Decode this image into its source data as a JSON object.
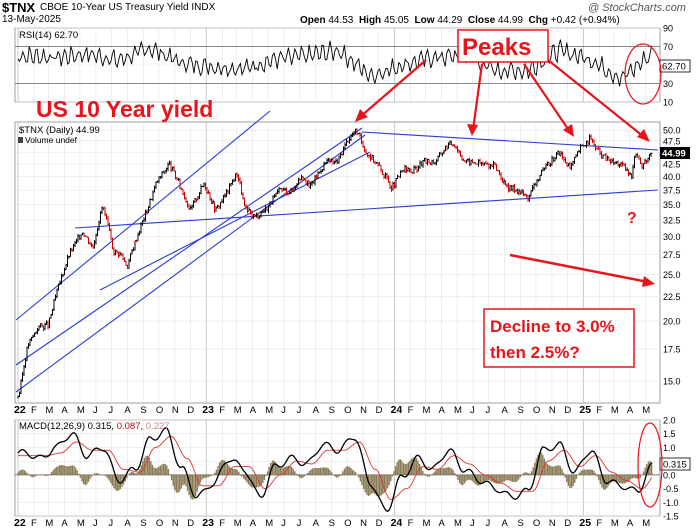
{
  "header": {
    "symbol": "$TNX",
    "description": "CBOE 10-Year US Treasury Yield INDX",
    "date": "13-May-2025",
    "watermark": "@ StockCharts.com",
    "ohlc": {
      "open_label": "Open",
      "open": "44.53",
      "high_label": "High",
      "high": "45.05",
      "low_label": "Low",
      "low": "44.29",
      "close_label": "Close",
      "close": "44.99",
      "chg_label": "Chg",
      "chg": "+0.42 (+0.94%)"
    }
  },
  "annotations": {
    "title": "US 10 Year yield",
    "peaks": "Peaks",
    "question": "?",
    "decline": "Decline to 3.0%\nthen 2.5%?",
    "red_color": "#e8141c"
  },
  "colors": {
    "channel": "#2a3bd6",
    "price": "#000000",
    "down": "#cc0000",
    "grid": "#e3e3e3",
    "hist": "#8a7a55"
  },
  "x_axis": {
    "months": [
      "22",
      "F",
      "M",
      "A",
      "M",
      "J",
      "J",
      "A",
      "S",
      "O",
      "N",
      "D",
      "23",
      "F",
      "M",
      "A",
      "M",
      "J",
      "J",
      "A",
      "S",
      "O",
      "N",
      "D",
      "24",
      "F",
      "M",
      "A",
      "M",
      "J",
      "J",
      "A",
      "S",
      "O",
      "N",
      "D",
      "25",
      "F",
      "M",
      "A",
      "M"
    ],
    "year_marks": [
      "22",
      "23",
      "24",
      "25"
    ]
  },
  "chart_data": [
    {
      "type": "line",
      "name": "rsi_panel",
      "label": "RSI(14) 62.70",
      "current": "62.70",
      "ylim": [
        10,
        90
      ],
      "yticks": [
        "90",
        "70",
        "50",
        "30",
        "10"
      ],
      "lines": [
        30,
        70
      ],
      "series": [
        {
          "x": [
            "2022-01",
            "2022-03",
            "2022-05",
            "2022-07",
            "2022-09",
            "2022-11",
            "2023-01",
            "2023-03",
            "2023-05",
            "2023-07",
            "2023-09",
            "2023-11",
            "2024-01",
            "2024-03",
            "2024-05",
            "2024-07",
            "2024-09",
            "2024-11",
            "2025-01",
            "2025-03",
            "2025-05"
          ],
          "y": [
            60,
            58,
            62,
            55,
            68,
            52,
            48,
            46,
            56,
            60,
            66,
            38,
            50,
            58,
            60,
            44,
            44,
            66,
            56,
            35,
            62.7
          ]
        }
      ]
    },
    {
      "type": "line",
      "name": "price_panel",
      "label": "$TNX (Daily) 44.99",
      "volume_label": "Volume undef",
      "current": "44.99",
      "yscale": "log",
      "ylim": [
        13.5,
        52
      ],
      "yticks": [
        "50.0",
        "47.5",
        "45.0",
        "42.5",
        "40.0",
        "37.5",
        "35.0",
        "32.5",
        "30.0",
        "27.5",
        "25.0",
        "22.5",
        "20.0",
        "17.5",
        "15.0"
      ],
      "series": [
        {
          "x": [
            "2022-01-03",
            "2022-01-20",
            "2022-02-10",
            "2022-03-01",
            "2022-03-20",
            "2022-04-10",
            "2022-05-06",
            "2022-05-26",
            "2022-06-14",
            "2022-07-05",
            "2022-07-20",
            "2022-08-01",
            "2022-08-22",
            "2022-09-10",
            "2022-09-27",
            "2022-10-21",
            "2022-11-10",
            "2022-12-01",
            "2022-12-28",
            "2023-01-19",
            "2023-02-08",
            "2023-03-02",
            "2023-03-17",
            "2023-04-06",
            "2023-04-28",
            "2023-05-25",
            "2023-06-15",
            "2023-07-06",
            "2023-07-20",
            "2023-08-21",
            "2023-09-12",
            "2023-10-03",
            "2023-10-19",
            "2023-11-07",
            "2023-11-28",
            "2023-12-27",
            "2024-01-19",
            "2024-02-05",
            "2024-02-27",
            "2024-03-20",
            "2024-04-12",
            "2024-04-25",
            "2024-05-16",
            "2024-06-05",
            "2024-06-25",
            "2024-07-15",
            "2024-08-05",
            "2024-08-22",
            "2024-09-16",
            "2024-10-07",
            "2024-10-28",
            "2024-11-15",
            "2024-12-06",
            "2024-12-27",
            "2025-01-14",
            "2025-02-03",
            "2025-02-24",
            "2025-03-14",
            "2025-04-04",
            "2025-04-11",
            "2025-04-25",
            "2025-05-13"
          ],
          "y": [
            14.0,
            17.8,
            19.5,
            19.6,
            23.5,
            27.5,
            30.8,
            28.5,
            34.8,
            28.0,
            27.5,
            26.0,
            30.5,
            34.5,
            39.0,
            42.5,
            38.5,
            34.0,
            38.8,
            34.0,
            36.8,
            40.8,
            34.2,
            33.0,
            34.4,
            37.6,
            37.2,
            40.5,
            37.9,
            43.0,
            42.9,
            47.9,
            49.9,
            45.0,
            42.6,
            37.9,
            41.5,
            41.0,
            43.0,
            43.0,
            46.5,
            47.0,
            43.0,
            42.8,
            42.5,
            42.0,
            37.8,
            37.8,
            36.2,
            40.0,
            42.8,
            45.0,
            41.5,
            46.0,
            48.0,
            44.5,
            43.0,
            42.5,
            40.0,
            45.2,
            42.0,
            44.99
          ]
        }
      ]
    },
    {
      "type": "line",
      "name": "macd_panel",
      "label": "MACD(12,26,9)",
      "values": [
        "0.315",
        "0.087",
        "0.227"
      ],
      "current": "0.315",
      "ylim": [
        -1.5,
        2.0
      ],
      "yticks": [
        "2.0",
        "1.5",
        "1.0",
        "0.5",
        "0.0",
        "-0.5",
        "-1.0",
        "-1.5"
      ],
      "series": [
        {
          "name": "0.315",
          "x": [
            "2022-01",
            "2022-02",
            "2022-03",
            "2022-04",
            "2022-05",
            "2022-06",
            "2022-07",
            "2022-08",
            "2022-09",
            "2022-10",
            "2022-11",
            "2022-12",
            "2023-01",
            "2023-02",
            "2023-03",
            "2023-04",
            "2023-05",
            "2023-06",
            "2023-07",
            "2023-08",
            "2023-09",
            "2023-10",
            "2023-11",
            "2023-12",
            "2024-01",
            "2024-02",
            "2024-03",
            "2024-04",
            "2024-05",
            "2024-06",
            "2024-07",
            "2024-08",
            "2024-09",
            "2024-10",
            "2024-11",
            "2024-12",
            "2025-01",
            "2025-02",
            "2025-03",
            "2025-04",
            "2025-05"
          ],
          "y": [
            0.8,
            0.6,
            1.0,
            1.5,
            0.7,
            1.0,
            -0.2,
            0.2,
            1.3,
            1.6,
            0.2,
            -0.8,
            -0.3,
            0.6,
            0.2,
            -0.8,
            0.3,
            0.6,
            0.4,
            1.1,
            0.9,
            1.4,
            -0.3,
            -1.3,
            -0.1,
            0.6,
            0.2,
            0.9,
            0.2,
            -0.2,
            -0.5,
            -0.8,
            -0.6,
            0.9,
            1.1,
            0.1,
            0.9,
            -0.2,
            -0.4,
            -0.6,
            0.315
          ]
        },
        {
          "name": "0.087",
          "x": [
            "2022-01",
            "2022-02",
            "2022-03",
            "2022-04",
            "2022-05",
            "2022-06",
            "2022-07",
            "2022-08",
            "2022-09",
            "2022-10",
            "2022-11",
            "2022-12",
            "2023-01",
            "2023-02",
            "2023-03",
            "2023-04",
            "2023-05",
            "2023-06",
            "2023-07",
            "2023-08",
            "2023-09",
            "2023-10",
            "2023-11",
            "2023-12",
            "2024-01",
            "2024-02",
            "2024-03",
            "2024-04",
            "2024-05",
            "2024-06",
            "2024-07",
            "2024-08",
            "2024-09",
            "2024-10",
            "2024-11",
            "2024-12",
            "2025-01",
            "2025-02",
            "2025-03",
            "2025-04",
            "2025-05"
          ],
          "y": [
            0.7,
            0.7,
            0.8,
            1.2,
            0.9,
            0.9,
            0.2,
            0.1,
            1.0,
            1.4,
            0.6,
            -0.4,
            -0.4,
            0.3,
            0.3,
            -0.5,
            0.0,
            0.5,
            0.4,
            0.9,
            0.9,
            1.2,
            0.2,
            -0.9,
            -0.5,
            0.3,
            0.2,
            0.7,
            0.4,
            0.0,
            -0.3,
            -0.6,
            -0.6,
            0.5,
            0.9,
            0.3,
            0.7,
            0.1,
            -0.2,
            -0.5,
            0.087
          ]
        }
      ]
    }
  ]
}
